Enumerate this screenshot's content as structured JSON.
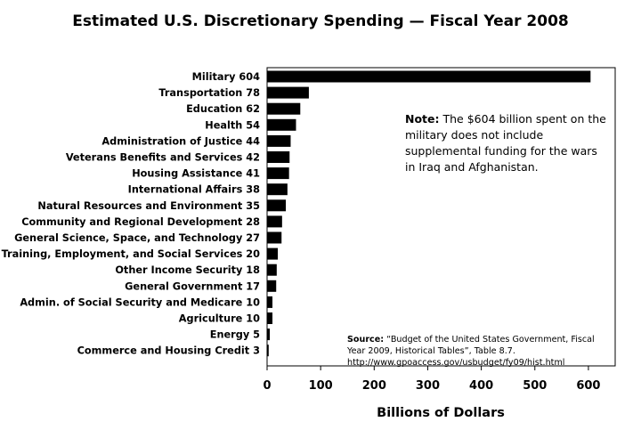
{
  "chart_data": {
    "type": "bar",
    "orientation": "horizontal",
    "title": "Estimated U.S. Discretionary Spending — Fiscal Year 2008",
    "xlabel": "Billions of Dollars",
    "ylabel": "",
    "xlim": [
      0,
      650
    ],
    "xticks": [
      "0",
      "100",
      "200",
      "300",
      "400",
      "500",
      "600"
    ],
    "grid": false,
    "categories": [
      "Military",
      "Transportation",
      "Education",
      "Health",
      "Administration of Justice",
      "Veterans Benefits and Services",
      "Housing Assistance",
      "International Affairs",
      "Natural Resources and Environment",
      "Community and Regional Development",
      "General Science, Space, and Technology",
      "Training, Employment, and Social Services",
      "Other Income Security",
      "General Government",
      "Admin. of Social Security and Medicare",
      "Agriculture",
      "Energy",
      "Commerce and Housing Credit"
    ],
    "values": [
      604,
      78,
      62,
      54,
      44,
      42,
      41,
      38,
      35,
      28,
      27,
      20,
      18,
      17,
      10,
      10,
      5,
      3
    ],
    "bar_color": "#000000"
  },
  "note": {
    "label": "Note:",
    "text": " The $604 billion spent on the military does not include supplemental funding for the wars in Iraq and Afghanistan."
  },
  "source": {
    "label": "Source:",
    "text": " “Budget of the United States Government, Fiscal Year 2009, Historical Tables”, Table 8.7.",
    "url": "http://www.gpoaccess.gov/usbudget/fy09/hist.html"
  }
}
